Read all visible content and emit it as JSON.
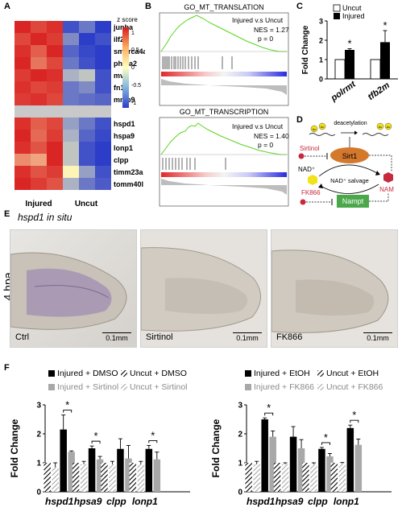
{
  "panels": {
    "a": "A",
    "b": "B",
    "c": "C",
    "d": "D",
    "e": "E",
    "f": "F"
  },
  "heatmap": {
    "legend_title": "z score",
    "legend_ticks": [
      "1",
      "0.5",
      "0",
      "-0.5",
      "-1"
    ],
    "genes_top": [
      "junba",
      "ilf2",
      "smarca4a",
      "phlda2",
      "mvp",
      "fn1b",
      "mmp9"
    ],
    "genes_bottom": [
      "hspd1",
      "hspa9",
      "lonp1",
      "clpp",
      "timm23a",
      "tomm40l"
    ],
    "group_labels": [
      "Injured",
      "Uncut"
    ],
    "colors": {
      "high": "#d7191c",
      "mid": "#ffffbf",
      "low": "#2c3ec8",
      "separator": "#c9c9c9"
    }
  },
  "gsea": [
    {
      "title": "GO_MT_TRANSLATION",
      "comparison": "Injured v.s Uncut",
      "nes": "NES = 1.27",
      "p": "p = 0"
    },
    {
      "title": "GO_MT_TRANSCRIPTION",
      "comparison": "Injured v.s Uncut",
      "nes": "NES = 1.40",
      "p": "p = 0"
    }
  ],
  "panel_c": {
    "ylabel": "Fold Change",
    "legend": [
      "Uncut",
      "Injured"
    ],
    "star": "*"
  },
  "pathway": {
    "deacetylation": "deacetylation",
    "ac": "Ac",
    "sirtinol": "Sirtinol",
    "sirt1": "Sirt1",
    "nad": "NAD⁺",
    "salvage": "NAD⁺ salvage",
    "nam": "NAM",
    "fk866": "FK866",
    "nampt": "Nampt",
    "colors": {
      "sirt1": "#d4782c",
      "nampt": "#4aa84a",
      "nad": "#f2e21a",
      "nam": "#c8283c",
      "inhibitor": "#c8283c"
    }
  },
  "panel_e": {
    "title": "hspd1 in situ",
    "timepoint": "4 hpa",
    "images": [
      {
        "label": "Ctrl",
        "scale": "0.1mm"
      },
      {
        "label": "Sirtinol",
        "scale": "0.1mm"
      },
      {
        "label": "FK866",
        "scale": "0.1mm"
      }
    ]
  },
  "chart_data": [
    {
      "type": "bar",
      "categories": [
        "polrmt",
        "tfb2m"
      ],
      "series": [
        {
          "name": "Uncut",
          "values": [
            1.0,
            1.0
          ],
          "errors": [
            0,
            0
          ]
        },
        {
          "name": "Injured",
          "values": [
            1.5,
            1.9
          ],
          "errors": [
            0.06,
            0.6
          ]
        }
      ],
      "ylabel": "Fold Change",
      "ylim": [
        0,
        3
      ],
      "yticks": [
        0,
        1,
        2,
        3
      ],
      "significance": [
        "*",
        "*"
      ],
      "legend_position": "top"
    },
    {
      "type": "bar",
      "categories": [
        "hspd1",
        "hpsa9",
        "clpp",
        "lonp1"
      ],
      "series": [
        {
          "name": "Uncut + DMSO",
          "values": [
            1.0,
            1.0,
            1.0,
            1.0
          ],
          "errors": [
            0,
            0,
            0,
            0
          ]
        },
        {
          "name": "Uncut + Sirtinol",
          "values": [
            0.85,
            0.95,
            0.95,
            0.95
          ],
          "errors": [
            0.15,
            0.1,
            0.1,
            0.1
          ]
        },
        {
          "name": "Injured + DMSO",
          "values": [
            2.15,
            1.5,
            1.48,
            1.48
          ],
          "errors": [
            0.5,
            0.08,
            0.35,
            0.12
          ]
        },
        {
          "name": "Injured + Sirtinol",
          "values": [
            1.38,
            1.12,
            1.15,
            1.12
          ],
          "errors": [
            0.03,
            0.1,
            0.45,
            0.25
          ]
        }
      ],
      "ylabel": "Fold Change",
      "ylim": [
        0,
        3
      ],
      "yticks": [
        0,
        1,
        2,
        3
      ],
      "significance": [
        "*",
        "*",
        "",
        "*"
      ],
      "legend_position": "top"
    },
    {
      "type": "bar",
      "categories": [
        "hspd1",
        "hpsa9",
        "clpp",
        "lonp1"
      ],
      "series": [
        {
          "name": "Uncut + EtOH",
          "values": [
            1.0,
            1.0,
            1.0,
            1.0
          ],
          "errors": [
            0,
            0,
            0,
            0
          ]
        },
        {
          "name": "Uncut + FK866",
          "values": [
            0.95,
            0.95,
            0.95,
            0.98
          ],
          "errors": [
            0.1,
            0.05,
            0.05,
            0.03
          ]
        },
        {
          "name": "Injured + EtOH",
          "values": [
            2.5,
            1.9,
            1.48,
            2.2
          ],
          "errors": [
            0.05,
            0.35,
            0.05,
            0.1
          ]
        },
        {
          "name": "Injured + FK866",
          "values": [
            1.9,
            1.5,
            1.22,
            1.62
          ],
          "errors": [
            0.2,
            0.3,
            0.1,
            0.2
          ]
        }
      ],
      "ylabel": "Fold Change",
      "ylim": [
        0,
        3
      ],
      "yticks": [
        0,
        1,
        2,
        3
      ],
      "significance": [
        "*",
        "",
        "*",
        "*"
      ],
      "legend_position": "top"
    }
  ]
}
